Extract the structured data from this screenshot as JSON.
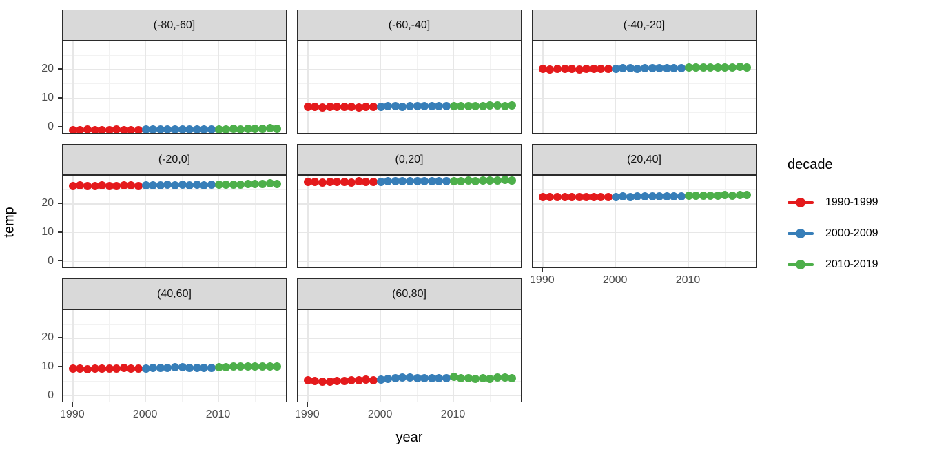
{
  "chart_data": {
    "type": "scatter",
    "title": "",
    "xlabel": "year",
    "ylabel": "temp",
    "x_ticks": [
      "1990",
      "2000",
      "2010"
    ],
    "y_ticks": [
      "0",
      "10",
      "20"
    ],
    "x_minor_ticks": [
      1995,
      2005,
      2015
    ],
    "y_minor_gridlines": [
      5,
      15,
      25
    ],
    "xlim": [
      1988.6,
      2019.4
    ],
    "ylim": [
      -2.5,
      29.8
    ],
    "grid": "on",
    "legend_position": "right",
    "x": [
      1990,
      1991,
      1992,
      1993,
      1994,
      1995,
      1996,
      1997,
      1998,
      1999,
      2000,
      2001,
      2002,
      2003,
      2004,
      2005,
      2006,
      2007,
      2008,
      2009,
      2010,
      2011,
      2012,
      2013,
      2014,
      2015,
      2016,
      2017,
      2018
    ],
    "facets": [
      {
        "label": "(-80,-60]",
        "values": [
          -1.0,
          -1.1,
          -0.9,
          -1.0,
          -1.1,
          -1.0,
          -0.9,
          -1.0,
          -1.1,
          -1.0,
          -0.9,
          -0.8,
          -0.9,
          -0.8,
          -0.9,
          -0.8,
          -0.9,
          -0.8,
          -0.8,
          -0.9,
          -0.8,
          -0.8,
          -0.7,
          -0.8,
          -0.7,
          -0.7,
          -0.6,
          -0.4,
          -0.5
        ]
      },
      {
        "label": "(-60,-40]",
        "values": [
          7.0,
          7.0,
          6.9,
          7.0,
          7.1,
          7.0,
          7.0,
          6.9,
          7.0,
          7.0,
          7.1,
          7.2,
          7.2,
          7.1,
          7.2,
          7.3,
          7.2,
          7.2,
          7.3,
          7.2,
          7.3,
          7.3,
          7.4,
          7.4,
          7.3,
          7.5,
          7.5,
          7.4,
          7.6
        ]
      },
      {
        "label": "(-40,-20]",
        "values": [
          20.2,
          20.1,
          20.2,
          20.3,
          20.2,
          20.1,
          20.2,
          20.3,
          20.2,
          20.2,
          20.3,
          20.4,
          20.4,
          20.3,
          20.4,
          20.5,
          20.4,
          20.5,
          20.4,
          20.5,
          20.6,
          20.6,
          20.7,
          20.7,
          20.8,
          20.8,
          20.7,
          20.9,
          20.8
        ]
      },
      {
        "label": "(-20,0]",
        "values": [
          26.3,
          26.4,
          26.2,
          26.3,
          26.4,
          26.3,
          26.2,
          26.5,
          26.4,
          26.3,
          26.4,
          26.5,
          26.5,
          26.6,
          26.5,
          26.6,
          26.5,
          26.6,
          26.5,
          26.6,
          26.7,
          26.7,
          26.8,
          26.8,
          26.9,
          27.0,
          26.9,
          27.1,
          26.9
        ]
      },
      {
        "label": "(0,20]",
        "values": [
          27.6,
          27.7,
          27.5,
          27.6,
          27.7,
          27.6,
          27.5,
          27.8,
          27.6,
          27.6,
          27.7,
          27.8,
          27.8,
          27.9,
          27.8,
          27.9,
          27.8,
          27.9,
          28.0,
          27.9,
          28.0,
          28.0,
          28.1,
          28.0,
          28.1,
          28.2,
          28.1,
          28.3,
          28.1
        ]
      },
      {
        "label": "(20,40]",
        "values": [
          22.4,
          22.3,
          22.4,
          22.3,
          22.4,
          22.5,
          22.4,
          22.5,
          22.4,
          22.4,
          22.5,
          22.6,
          22.5,
          22.6,
          22.6,
          22.7,
          22.6,
          22.6,
          22.7,
          22.6,
          22.8,
          22.8,
          22.9,
          22.8,
          22.9,
          23.0,
          22.9,
          23.1,
          23.0
        ]
      },
      {
        "label": "(40,60]",
        "values": [
          9.4,
          9.5,
          9.3,
          9.4,
          9.5,
          9.4,
          9.5,
          9.6,
          9.5,
          9.4,
          9.5,
          9.6,
          9.7,
          9.8,
          10.0,
          9.9,
          9.7,
          9.6,
          9.7,
          9.7,
          9.9,
          10.0,
          10.1,
          10.1,
          10.2,
          10.1,
          10.2,
          10.3,
          10.2
        ]
      },
      {
        "label": "(60,80]",
        "values": [
          5.4,
          5.2,
          4.9,
          5.0,
          5.1,
          5.2,
          5.5,
          5.4,
          5.6,
          5.3,
          5.6,
          5.8,
          6.1,
          6.4,
          6.3,
          6.0,
          6.1,
          6.0,
          6.1,
          6.0,
          6.5,
          6.1,
          6.0,
          5.9,
          6.2,
          5.9,
          6.3,
          6.3,
          6.2
        ]
      }
    ],
    "legend": {
      "title": "decade",
      "entries": [
        {
          "label": "1990-1999",
          "color": "#E41A1C"
        },
        {
          "label": "2000-2009",
          "color": "#377EB8"
        },
        {
          "label": "2010-2019",
          "color": "#4DAF4A"
        }
      ]
    },
    "colors": {
      "strip_fill": "#D9D9D9",
      "panel_border": "#2b2b2b",
      "grid_major": "#E7E7E7",
      "grid_minor": "#F2F2F2",
      "axis_text": "#4D4D4D"
    }
  }
}
